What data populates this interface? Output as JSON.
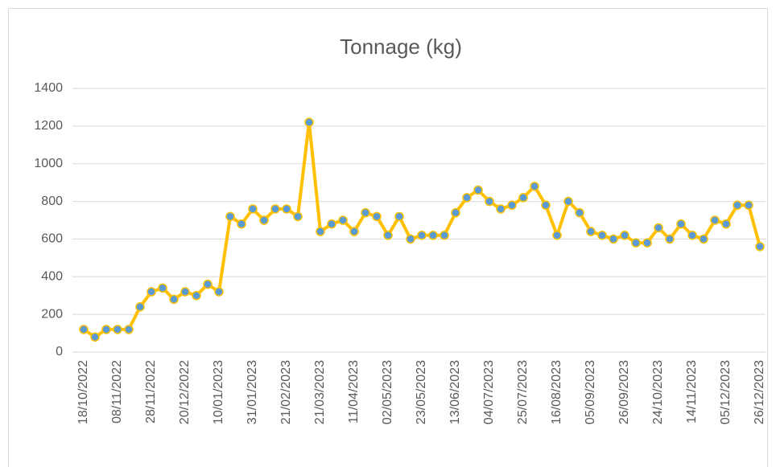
{
  "chart_data": {
    "type": "line",
    "title": "Tonnage (kg)",
    "categories": [
      "18/10/2022",
      null,
      null,
      "08/11/2022",
      null,
      null,
      "28/11/2022",
      null,
      null,
      "20/12/2022",
      null,
      null,
      "10/01/2023",
      null,
      null,
      "31/01/2023",
      null,
      null,
      "21/02/2023",
      null,
      null,
      "21/03/2023",
      null,
      null,
      "11/04/2023",
      null,
      null,
      "02/05/2023",
      null,
      null,
      "23/05/2023",
      null,
      null,
      "13/06/2023",
      null,
      null,
      "04/07/2023",
      null,
      null,
      "25/07/2023",
      null,
      null,
      "16/08/2023",
      null,
      null,
      "05/09/2023",
      null,
      null,
      "26/09/2023",
      null,
      null,
      "24/10/2023",
      null,
      null,
      "14/11/2023",
      null,
      null,
      "05/12/2023",
      null,
      null,
      "26/12/2023"
    ],
    "values": [
      120,
      80,
      120,
      120,
      120,
      240,
      320,
      340,
      280,
      320,
      300,
      360,
      320,
      720,
      680,
      760,
      700,
      760,
      760,
      720,
      1220,
      640,
      680,
      700,
      640,
      740,
      720,
      620,
      720,
      600,
      620,
      620,
      620,
      740,
      820,
      860,
      800,
      760,
      780,
      820,
      880,
      780,
      620,
      800,
      740,
      640,
      620,
      600,
      620,
      580,
      580,
      660,
      600,
      680,
      620,
      600,
      700,
      680,
      780,
      780,
      560
    ],
    "color": "#FFC000",
    "marker_color": "#5B9BD5",
    "ylim": [
      0,
      1400
    ],
    "yticks": [
      0,
      200,
      400,
      600,
      800,
      1000,
      1200,
      1400
    ],
    "grid": true
  }
}
